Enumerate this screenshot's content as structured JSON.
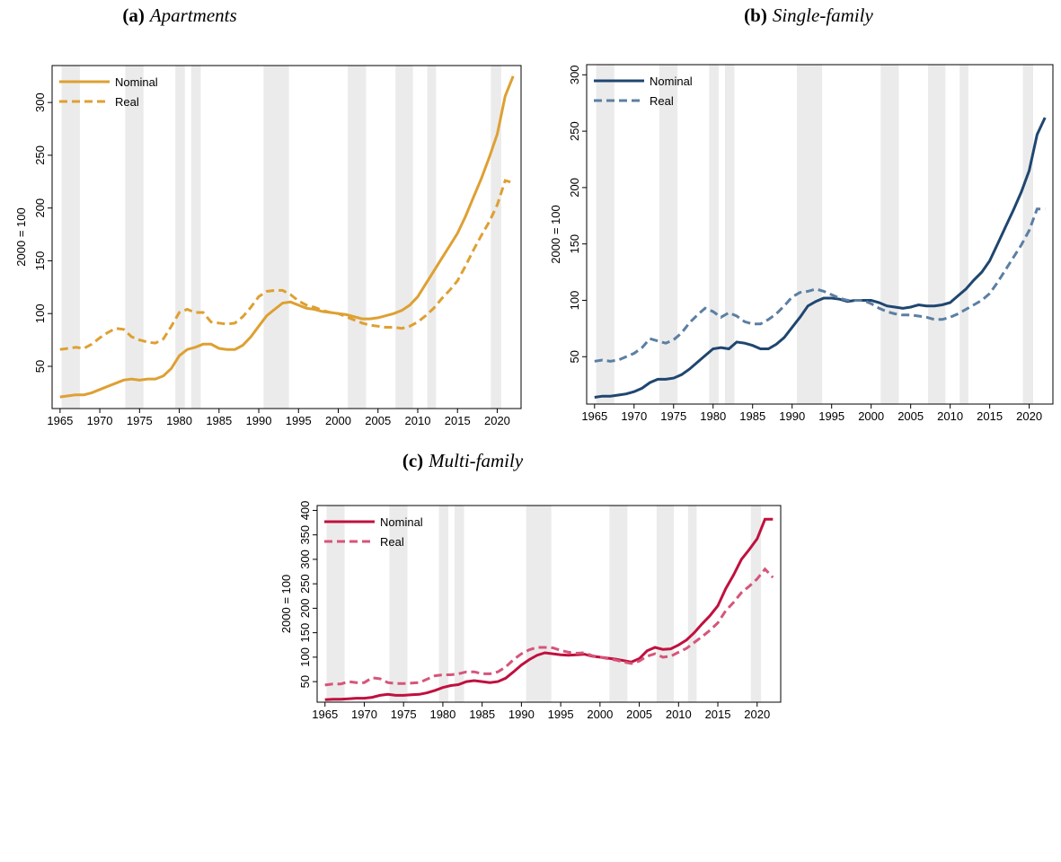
{
  "chart_data": [
    {
      "type": "line",
      "panel_label": "(a)",
      "title": "Apartments",
      "y_label": "2000 = 100",
      "x": [
        1965,
        1966,
        1967,
        1968,
        1969,
        1970,
        1971,
        1972,
        1973,
        1974,
        1975,
        1976,
        1977,
        1978,
        1979,
        1980,
        1981,
        1982,
        1983,
        1984,
        1985,
        1986,
        1987,
        1988,
        1989,
        1990,
        1991,
        1992,
        1993,
        1994,
        1995,
        1996,
        1997,
        1998,
        1999,
        2000,
        2001,
        2002,
        2003,
        2004,
        2005,
        2006,
        2007,
        2008,
        2009,
        2010,
        2011,
        2012,
        2013,
        2014,
        2015,
        2016,
        2017,
        2018,
        2019,
        2020,
        2021,
        2022
      ],
      "series": [
        {
          "name": "Nominal",
          "color": "#dea032",
          "dash": "solid",
          "values": [
            21,
            22,
            23,
            23,
            25,
            28,
            31,
            34,
            37,
            38,
            37,
            38,
            38,
            41,
            48,
            60,
            66,
            68,
            71,
            71,
            67,
            66,
            66,
            70,
            78,
            88,
            98,
            104,
            110,
            111,
            108,
            105,
            104,
            102,
            101,
            100,
            99,
            97,
            95,
            95,
            96,
            98,
            100,
            103,
            108,
            116,
            128,
            140,
            152,
            164,
            176,
            192,
            210,
            228,
            248,
            270,
            306,
            325
          ]
        },
        {
          "name": "Real",
          "color": "#dea032",
          "dash": "dashed",
          "values": [
            66,
            67,
            68,
            67,
            71,
            77,
            82,
            86,
            85,
            78,
            75,
            73,
            72,
            76,
            88,
            101,
            104,
            101,
            101,
            92,
            91,
            90,
            91,
            97,
            106,
            116,
            121,
            122,
            122,
            118,
            112,
            108,
            106,
            103,
            101,
            100,
            97,
            94,
            91,
            89,
            88,
            87,
            87,
            86,
            88,
            92,
            98,
            105,
            114,
            122,
            131,
            145,
            160,
            174,
            187,
            203,
            226,
            224
          ]
        }
      ],
      "shaded_regions": [
        [
          1965.2,
          1967.5
        ],
        [
          1973.2,
          1975.5
        ],
        [
          1979.5,
          1980.7
        ],
        [
          1981.5,
          1982.7
        ],
        [
          1990.6,
          1993.8
        ],
        [
          2001.2,
          2003.5
        ],
        [
          2007.2,
          2009.4
        ],
        [
          2011.2,
          2012.3
        ],
        [
          2019.2,
          2020.5
        ]
      ],
      "xlim": [
        1964,
        2023
      ],
      "xticks": [
        1965,
        1970,
        1975,
        1980,
        1985,
        1990,
        1995,
        2000,
        2005,
        2010,
        2015,
        2020
      ],
      "ylim": [
        10,
        335
      ],
      "yticks": [
        50,
        100,
        150,
        200,
        250,
        300
      ]
    },
    {
      "type": "line",
      "panel_label": "(b)",
      "title": "Single-family",
      "y_label": "2000 = 100",
      "x": [
        1965,
        1966,
        1967,
        1968,
        1969,
        1970,
        1971,
        1972,
        1973,
        1974,
        1975,
        1976,
        1977,
        1978,
        1979,
        1980,
        1981,
        1982,
        1983,
        1984,
        1985,
        1986,
        1987,
        1988,
        1989,
        1990,
        1991,
        1992,
        1993,
        1994,
        1995,
        1996,
        1997,
        1998,
        1999,
        2000,
        2001,
        2002,
        2003,
        2004,
        2005,
        2006,
        2007,
        2008,
        2009,
        2010,
        2011,
        2012,
        2013,
        2014,
        2015,
        2016,
        2017,
        2018,
        2019,
        2020,
        2021,
        2022
      ],
      "series": [
        {
          "name": "Nominal",
          "color": "#1f4670",
          "dash": "solid",
          "values": [
            14,
            15,
            15,
            16,
            17,
            19,
            22,
            27,
            30,
            30,
            31,
            34,
            39,
            45,
            51,
            57,
            58,
            57,
            63,
            62,
            60,
            57,
            57,
            61,
            67,
            76,
            85,
            95,
            99,
            102,
            102,
            101,
            99,
            100,
            100,
            100,
            98,
            95,
            94,
            93,
            94,
            96,
            95,
            95,
            96,
            98,
            104,
            110,
            118,
            125,
            135,
            150,
            165,
            180,
            196,
            215,
            247,
            262
          ]
        },
        {
          "name": "Real",
          "color": "#5b7fa3",
          "dash": "dashed",
          "values": [
            46,
            47,
            46,
            47,
            50,
            53,
            58,
            66,
            64,
            62,
            65,
            71,
            80,
            87,
            93,
            90,
            85,
            89,
            86,
            81,
            79,
            79,
            83,
            88,
            95,
            103,
            107,
            108,
            110,
            108,
            105,
            102,
            100,
            100,
            100,
            97,
            93,
            90,
            88,
            87,
            87,
            86,
            85,
            83,
            83,
            85,
            88,
            92,
            96,
            100,
            106,
            116,
            127,
            138,
            149,
            162,
            181,
            181
          ]
        }
      ],
      "shaded_regions": [
        [
          1965.2,
          1967.5
        ],
        [
          1973.2,
          1975.5
        ],
        [
          1979.5,
          1980.7
        ],
        [
          1981.5,
          1982.7
        ],
        [
          1990.6,
          1993.8
        ],
        [
          2001.2,
          2003.5
        ],
        [
          2007.2,
          2009.4
        ],
        [
          2011.2,
          2012.3
        ],
        [
          2019.2,
          2020.5
        ]
      ],
      "xlim": [
        1964,
        2023
      ],
      "xticks": [
        1965,
        1970,
        1975,
        1980,
        1985,
        1990,
        1995,
        2000,
        2005,
        2010,
        2015,
        2020
      ],
      "ylim": [
        8,
        309
      ],
      "yticks": [
        50,
        100,
        150,
        200,
        250,
        300
      ]
    },
    {
      "type": "line",
      "panel_label": "(c)",
      "title": "Multi-family",
      "y_label": "2000 = 100",
      "x": [
        1965,
        1966,
        1967,
        1968,
        1969,
        1970,
        1971,
        1972,
        1973,
        1974,
        1975,
        1976,
        1977,
        1978,
        1979,
        1980,
        1981,
        1982,
        1983,
        1984,
        1985,
        1986,
        1987,
        1988,
        1989,
        1990,
        1991,
        1992,
        1993,
        1994,
        1995,
        1996,
        1997,
        1998,
        1999,
        2000,
        2001,
        2002,
        2003,
        2004,
        2005,
        2006,
        2007,
        2008,
        2009,
        2010,
        2011,
        2012,
        2013,
        2014,
        2015,
        2016,
        2017,
        2018,
        2019,
        2020,
        2021,
        2022
      ],
      "series": [
        {
          "name": "Nominal",
          "color": "#c0103e",
          "dash": "solid",
          "values": [
            13,
            14,
            14,
            15,
            16,
            16,
            18,
            22,
            24,
            22,
            22,
            23,
            24,
            27,
            32,
            38,
            42,
            44,
            50,
            52,
            50,
            48,
            50,
            57,
            70,
            84,
            95,
            104,
            109,
            107,
            105,
            104,
            105,
            106,
            102,
            100,
            98,
            96,
            93,
            90,
            97,
            113,
            120,
            116,
            117,
            125,
            135,
            150,
            168,
            185,
            205,
            240,
            268,
            300,
            320,
            342,
            382,
            382
          ]
        },
        {
          "name": "Real",
          "color": "#d6557a",
          "dash": "dashed",
          "values": [
            43,
            45,
            45,
            50,
            48,
            48,
            58,
            56,
            48,
            46,
            46,
            47,
            48,
            55,
            62,
            64,
            64,
            66,
            70,
            70,
            66,
            66,
            70,
            80,
            95,
            107,
            115,
            120,
            120,
            119,
            114,
            110,
            108,
            109,
            103,
            100,
            97,
            94,
            90,
            87,
            92,
            102,
            107,
            100,
            102,
            110,
            118,
            130,
            142,
            155,
            170,
            195,
            212,
            232,
            245,
            260,
            280,
            263
          ]
        }
      ],
      "shaded_regions": [
        [
          1965.2,
          1967.5
        ],
        [
          1973.2,
          1975.5
        ],
        [
          1979.5,
          1980.7
        ],
        [
          1981.5,
          1982.7
        ],
        [
          1990.6,
          1993.8
        ],
        [
          2001.2,
          2003.5
        ],
        [
          2007.2,
          2009.4
        ],
        [
          2011.2,
          2012.3
        ],
        [
          2019.2,
          2020.5
        ]
      ],
      "xlim": [
        1964,
        2023
      ],
      "xticks": [
        1965,
        1970,
        1975,
        1980,
        1985,
        1990,
        1995,
        2000,
        2005,
        2010,
        2015,
        2020
      ],
      "ylim": [
        8,
        410
      ],
      "yticks": [
        50,
        100,
        150,
        200,
        250,
        300,
        350,
        400
      ]
    }
  ]
}
